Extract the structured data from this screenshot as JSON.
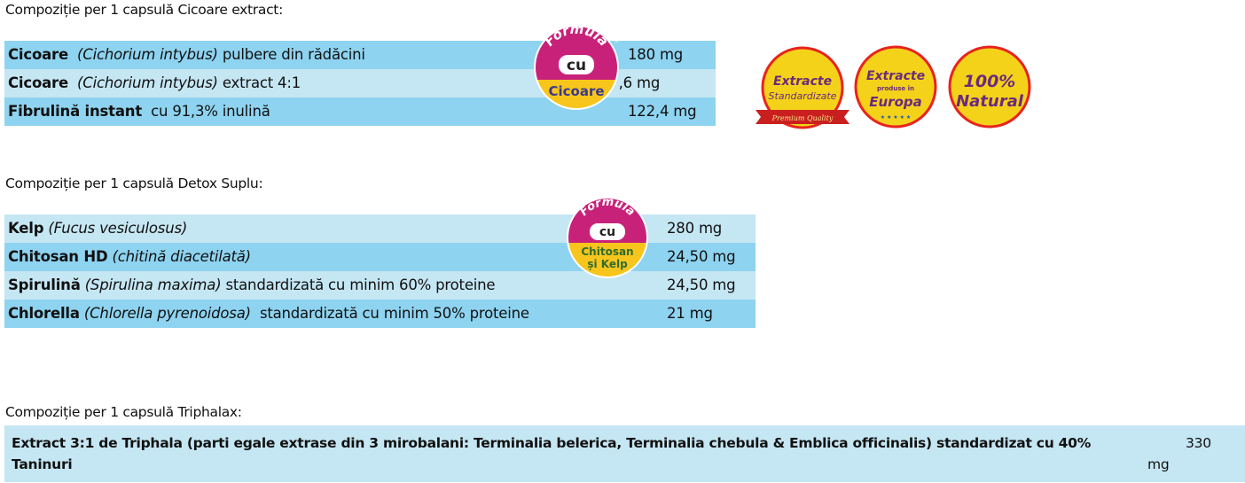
{
  "sections": [
    {
      "heading": "Compoziție per 1 capsulă Cicoare extract:",
      "badge": {
        "top": "Formula",
        "mid": "cu",
        "bottom": "Cicoare"
      },
      "rows": [
        {
          "bold": "Cicoare",
          "italic": "(Cichorium intybus)",
          "rest": "pulbere din rădăcini",
          "amount": "180 mg"
        },
        {
          "bold": "Cicoare",
          "italic": "(Cichorium intybus)",
          "rest": "extract 4:1",
          "amount": "57,6 mg"
        },
        {
          "bold": "Fibrulină instant",
          "italic": "",
          "rest": "cu 91,3% inulină",
          "amount": "122,4 mg"
        }
      ]
    },
    {
      "heading": "Compoziție per 1 capsulă Detox Suplu:",
      "badge": {
        "top": "Formula",
        "mid": "cu",
        "bottom_line1": "Chitosan",
        "bottom_line2": "și Kelp"
      },
      "rows": [
        {
          "bold": "Kelp",
          "italic": "(Fucus vesiculosus)",
          "rest": "",
          "amount": "280 mg"
        },
        {
          "bold": "Chitosan HD",
          "italic": "(chitină diacetilată)",
          "rest": "",
          "amount": "24,50 mg"
        },
        {
          "bold": "Spirulină",
          "italic": "(Spirulina maxima)",
          "rest": "standardizată cu minim 60% proteine",
          "amount": "24,50 mg"
        },
        {
          "bold": "Chlorella",
          "italic": "(Chlorella pyrenoidosa)",
          "rest": "standardizată cu minim 50% proteine",
          "amount": "21 mg"
        }
      ]
    },
    {
      "heading": "Compoziție per 1 capsulă Triphalax:",
      "rows": [
        {
          "text": "Extract 3:1 de Triphala (parti egale extrase din 3 mirobalani: Terminalia belerica, Terminalia chebula & Emblica officinalis) standardizat cu 40% Taninuri",
          "amount_line1": "330",
          "amount_line2": "mg"
        }
      ]
    }
  ],
  "quality_badges": {
    "standardized": {
      "line1": "Extracte",
      "line2": "Standardizate",
      "ribbon": "Premium Quality"
    },
    "europe": {
      "line1": "Extracte",
      "line2": "produse în",
      "line3": "Europa"
    },
    "natural": {
      "line1": "100%",
      "line2": "Natural"
    }
  },
  "colors": {
    "row_dark": "#8ed3f0",
    "row_light": "#c5e6f3",
    "badge_magenta": "#c8217a",
    "badge_yellow": "#f7c51c",
    "badge_ring": "#e8231d",
    "badge_text_purple": "#6b2a7c"
  }
}
